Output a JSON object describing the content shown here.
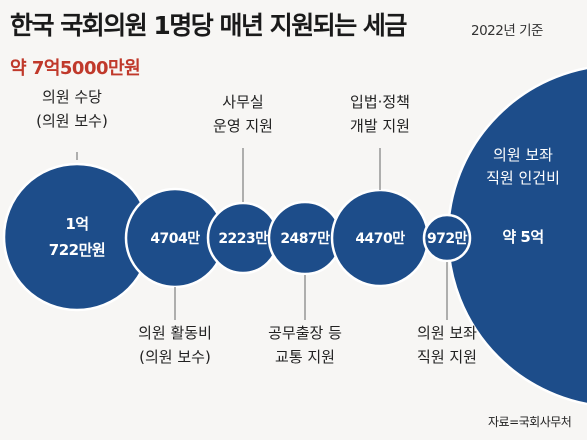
{
  "chart_data": {
    "type": "bubble",
    "title": "한국 국회의원 1명당 매년 지원되는 세금",
    "year_note": "2022년 기준",
    "subtitle": "약 7억5000만원",
    "source": "자료=국회사무처",
    "bubbles": [
      {
        "name": "의원 수당 (의원 보수)",
        "label": [
          "의원 수당",
          "(의원 보수)"
        ],
        "value_text": [
          "1억",
          "722만원"
        ],
        "value_manwon": 10722
      },
      {
        "name": "의원 활동비 (의원 보수)",
        "label": [
          "의원 활동비",
          "(의원 보수)"
        ],
        "value_text": [
          "4704만"
        ],
        "value_manwon": 4704
      },
      {
        "name": "사무실 운영 지원",
        "label": [
          "사무실",
          "운영 지원"
        ],
        "value_text": [
          "2223만"
        ],
        "value_manwon": 2223
      },
      {
        "name": "공무출장 등 교통 지원",
        "label": [
          "공무출장 등",
          "교통 지원"
        ],
        "value_text": [
          "2487만"
        ],
        "value_manwon": 2487
      },
      {
        "name": "입법·정책 개발 지원",
        "label": [
          "입법·정책",
          "개발 지원"
        ],
        "value_text": [
          "4470만"
        ],
        "value_manwon": 4470
      },
      {
        "name": "의원 보좌 직원 지원",
        "label": [
          "의원 보좌",
          "직원 지원"
        ],
        "value_text": [
          "972만"
        ],
        "value_manwon": 972
      },
      {
        "name": "의원 보좌 직원 인건비",
        "label": [
          "의원 보좌",
          "직원 인건비"
        ],
        "value_text": [
          "약 5억"
        ],
        "value_manwon": 50000
      }
    ],
    "colors": {
      "bubble_fill": "#1d4d8a",
      "bubble_stroke": "#ffffff",
      "leader": "#666666",
      "background": "#f7f6f4",
      "subtitle": "#c0392b"
    }
  }
}
